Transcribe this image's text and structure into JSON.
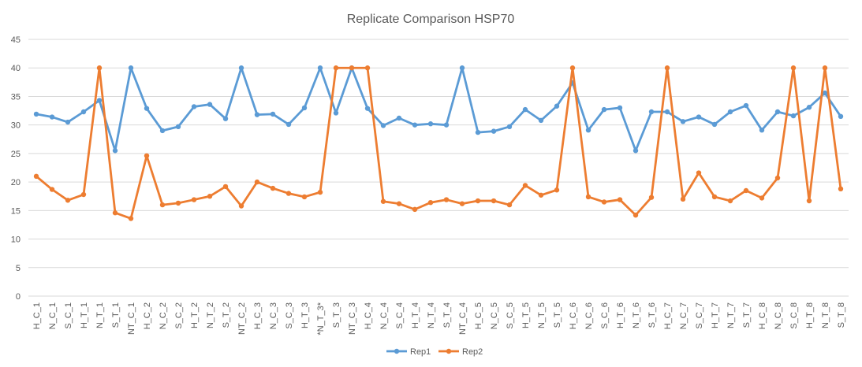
{
  "chart_data": {
    "type": "line",
    "title": "Replicate Comparison HSP70",
    "xlabel": "",
    "ylabel": "",
    "ylim": [
      0,
      45
    ],
    "yticks": [
      0,
      5,
      10,
      15,
      20,
      25,
      30,
      35,
      40,
      45
    ],
    "grid": "horizontal",
    "legend_position": "bottom",
    "categories": [
      "H_C_1",
      "N_C_1",
      "S_C_1",
      "H_T_1",
      "N_T_1",
      "S_T_1",
      "NT_C_1",
      "H_C_2",
      "N_C_2",
      "S_C_2",
      "H_T_2",
      "N_T_2",
      "S_T_2",
      "NT_C_2",
      "H_C_3",
      "N_C_3",
      "S_C_3",
      "H_T_3",
      "*N_T_3*",
      "S_T_3",
      "NT_C_3",
      "H_C_4",
      "N_C_4",
      "S_C_4",
      "H_T_4",
      "N_T_4",
      "S_T_4",
      "NT_C_4",
      "H_C_5",
      "N_C_5",
      "S_C_5",
      "H_T_5",
      "N_T_5",
      "S_T_5",
      "H_C_6",
      "N_C_6",
      "S_C_6",
      "H_T_6",
      "N_T_6",
      "S_T_6",
      "H_C_7",
      "N_C_7",
      "S_C_7",
      "H_T_7",
      "N_T_7",
      "S_T_7",
      "H_C_8",
      "N_C_8",
      "S_C_8",
      "H_T_8",
      "N_T_8",
      "S_T_8"
    ],
    "series": [
      {
        "name": "Rep1",
        "color": "#5b9bd5",
        "values": [
          31.9,
          31.4,
          30.5,
          32.3,
          34.3,
          25.5,
          40.0,
          32.9,
          29.0,
          29.7,
          33.2,
          33.6,
          31.1,
          40.0,
          31.8,
          31.9,
          30.1,
          33.0,
          40.0,
          32.1,
          40.0,
          32.9,
          29.9,
          31.2,
          30.0,
          30.2,
          30.0,
          40.0,
          28.7,
          28.9,
          29.7,
          32.7,
          30.8,
          33.3,
          37.4,
          29.1,
          32.7,
          33.0,
          25.5,
          32.3,
          32.3,
          30.6,
          31.4,
          30.1,
          32.3,
          33.4,
          29.1,
          32.3,
          31.6,
          33.1,
          35.6,
          31.5
        ]
      },
      {
        "name": "Rep2",
        "color": "#ed7d31",
        "values": [
          21.0,
          18.7,
          16.8,
          17.8,
          40.0,
          14.6,
          13.6,
          24.6,
          16.0,
          16.3,
          16.9,
          17.5,
          19.2,
          15.8,
          20.0,
          18.9,
          18.0,
          17.4,
          18.2,
          40.0,
          40.0,
          40.0,
          16.6,
          16.2,
          15.2,
          16.4,
          16.9,
          16.2,
          16.7,
          16.7,
          16.0,
          19.4,
          17.7,
          18.6,
          40.0,
          17.4,
          16.5,
          16.9,
          14.2,
          17.3,
          40.0,
          17.0,
          21.6,
          17.4,
          16.7,
          18.5,
          17.2,
          20.7,
          40.0,
          16.7,
          40.0,
          18.8
        ]
      }
    ]
  }
}
